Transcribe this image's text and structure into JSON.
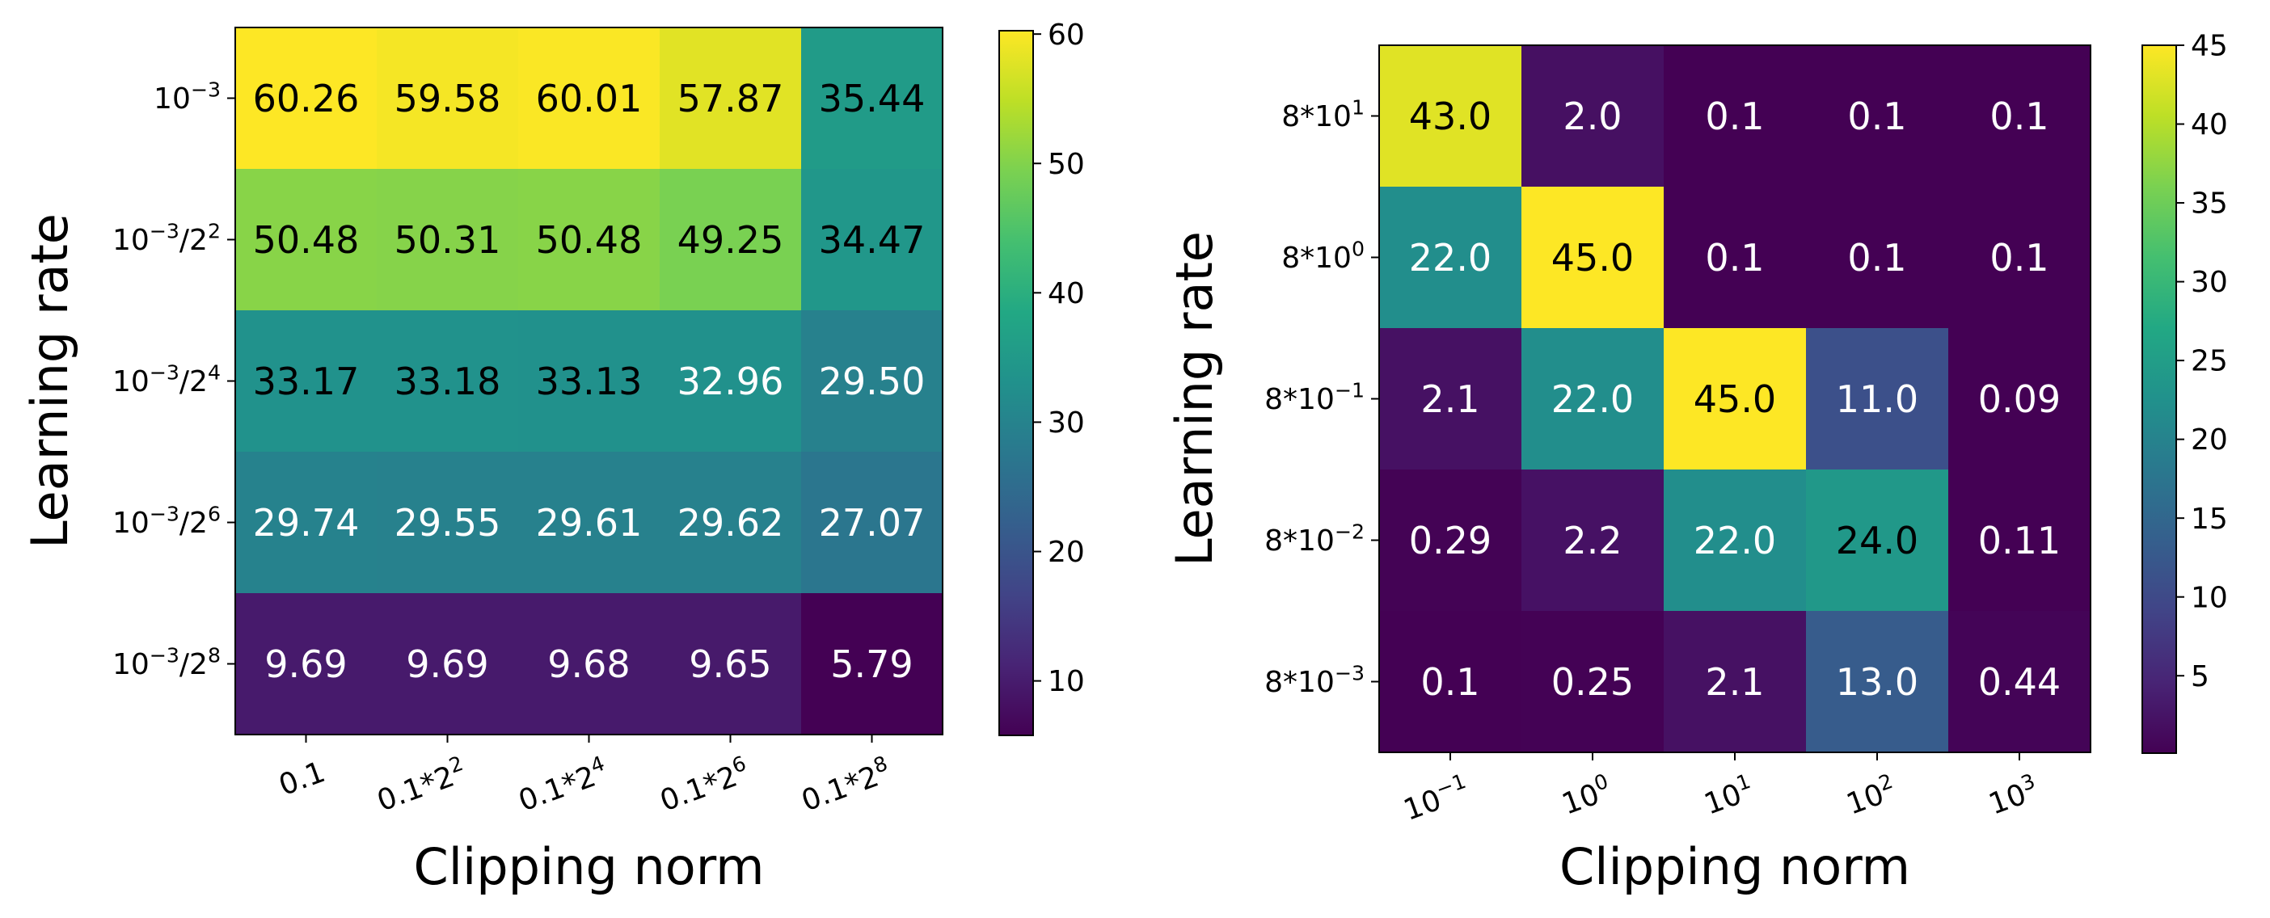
{
  "chart_data": [
    {
      "type": "heatmap",
      "xlabel": "Clipping norm",
      "ylabel": "Learning rate",
      "x_categories": [
        {
          "base": "0.1",
          "exp": ""
        },
        {
          "base": "0.1*2",
          "exp": "2"
        },
        {
          "base": "0.1*2",
          "exp": "4"
        },
        {
          "base": "0.1*2",
          "exp": "6"
        },
        {
          "base": "0.1*2",
          "exp": "8"
        }
      ],
      "y_categories": [
        {
          "pre": "10",
          "exp": "−3",
          "post": ""
        },
        {
          "pre": "10",
          "exp": "−3",
          "post": "/2",
          "exp2": "2"
        },
        {
          "pre": "10",
          "exp": "−3",
          "post": "/2",
          "exp2": "4"
        },
        {
          "pre": "10",
          "exp": "−3",
          "post": "/2",
          "exp2": "6"
        },
        {
          "pre": "10",
          "exp": "−3",
          "post": "/2",
          "exp2": "8"
        }
      ],
      "values": [
        [
          60.26,
          59.58,
          60.01,
          57.87,
          35.44
        ],
        [
          50.48,
          50.31,
          50.48,
          49.25,
          34.47
        ],
        [
          33.17,
          33.18,
          33.13,
          32.96,
          29.5
        ],
        [
          29.74,
          29.55,
          29.61,
          29.62,
          27.07
        ],
        [
          9.69,
          9.69,
          9.68,
          9.65,
          5.79
        ]
      ],
      "labels": [
        [
          "60.26",
          "59.58",
          "60.01",
          "57.87",
          "35.44"
        ],
        [
          "50.48",
          "50.31",
          "50.48",
          "49.25",
          "34.47"
        ],
        [
          "33.17",
          "33.18",
          "33.13",
          "32.96",
          "29.50"
        ],
        [
          "29.74",
          "29.55",
          "29.61",
          "29.62",
          "27.07"
        ],
        [
          "9.69",
          "9.69",
          "9.68",
          "9.65",
          "5.79"
        ]
      ],
      "color_range": [
        5.79,
        60.26
      ],
      "colorbar_ticks": [
        10,
        20,
        30,
        40,
        50,
        60
      ],
      "colormap": "viridis"
    },
    {
      "type": "heatmap",
      "xlabel": "Clipping norm",
      "ylabel": "Learning rate",
      "x_categories": [
        {
          "base": "10",
          "exp": "−1"
        },
        {
          "base": "10",
          "exp": "0"
        },
        {
          "base": "10",
          "exp": "1"
        },
        {
          "base": "10",
          "exp": "2"
        },
        {
          "base": "10",
          "exp": "3"
        }
      ],
      "y_categories": [
        {
          "pre": "8*10",
          "exp": "1",
          "post": ""
        },
        {
          "pre": "8*10",
          "exp": "0",
          "post": ""
        },
        {
          "pre": "8*10",
          "exp": "−1",
          "post": ""
        },
        {
          "pre": "8*10",
          "exp": "−2",
          "post": ""
        },
        {
          "pre": "8*10",
          "exp": "−3",
          "post": ""
        }
      ],
      "values": [
        [
          43.0,
          2.0,
          0.1,
          0.1,
          0.1
        ],
        [
          22.0,
          45.0,
          0.1,
          0.1,
          0.1
        ],
        [
          2.1,
          22.0,
          45.0,
          11.0,
          0.09
        ],
        [
          0.29,
          2.2,
          22.0,
          24.0,
          0.11
        ],
        [
          0.1,
          0.25,
          2.1,
          13.0,
          0.44
        ]
      ],
      "labels": [
        [
          "43.0",
          "2.0",
          "0.1",
          "0.1",
          "0.1"
        ],
        [
          "22.0",
          "45.0",
          "0.1",
          "0.1",
          "0.1"
        ],
        [
          "2.1",
          "22.0",
          "45.0",
          "11.0",
          "0.09"
        ],
        [
          "0.29",
          "2.2",
          "22.0",
          "24.0",
          "0.11"
        ],
        [
          "0.1",
          "0.25",
          "2.1",
          "13.0",
          "0.44"
        ]
      ],
      "color_range": [
        0.09,
        45.0
      ],
      "colorbar_ticks": [
        5,
        10,
        15,
        20,
        25,
        30,
        35,
        40,
        45
      ],
      "colormap": "viridis"
    }
  ]
}
